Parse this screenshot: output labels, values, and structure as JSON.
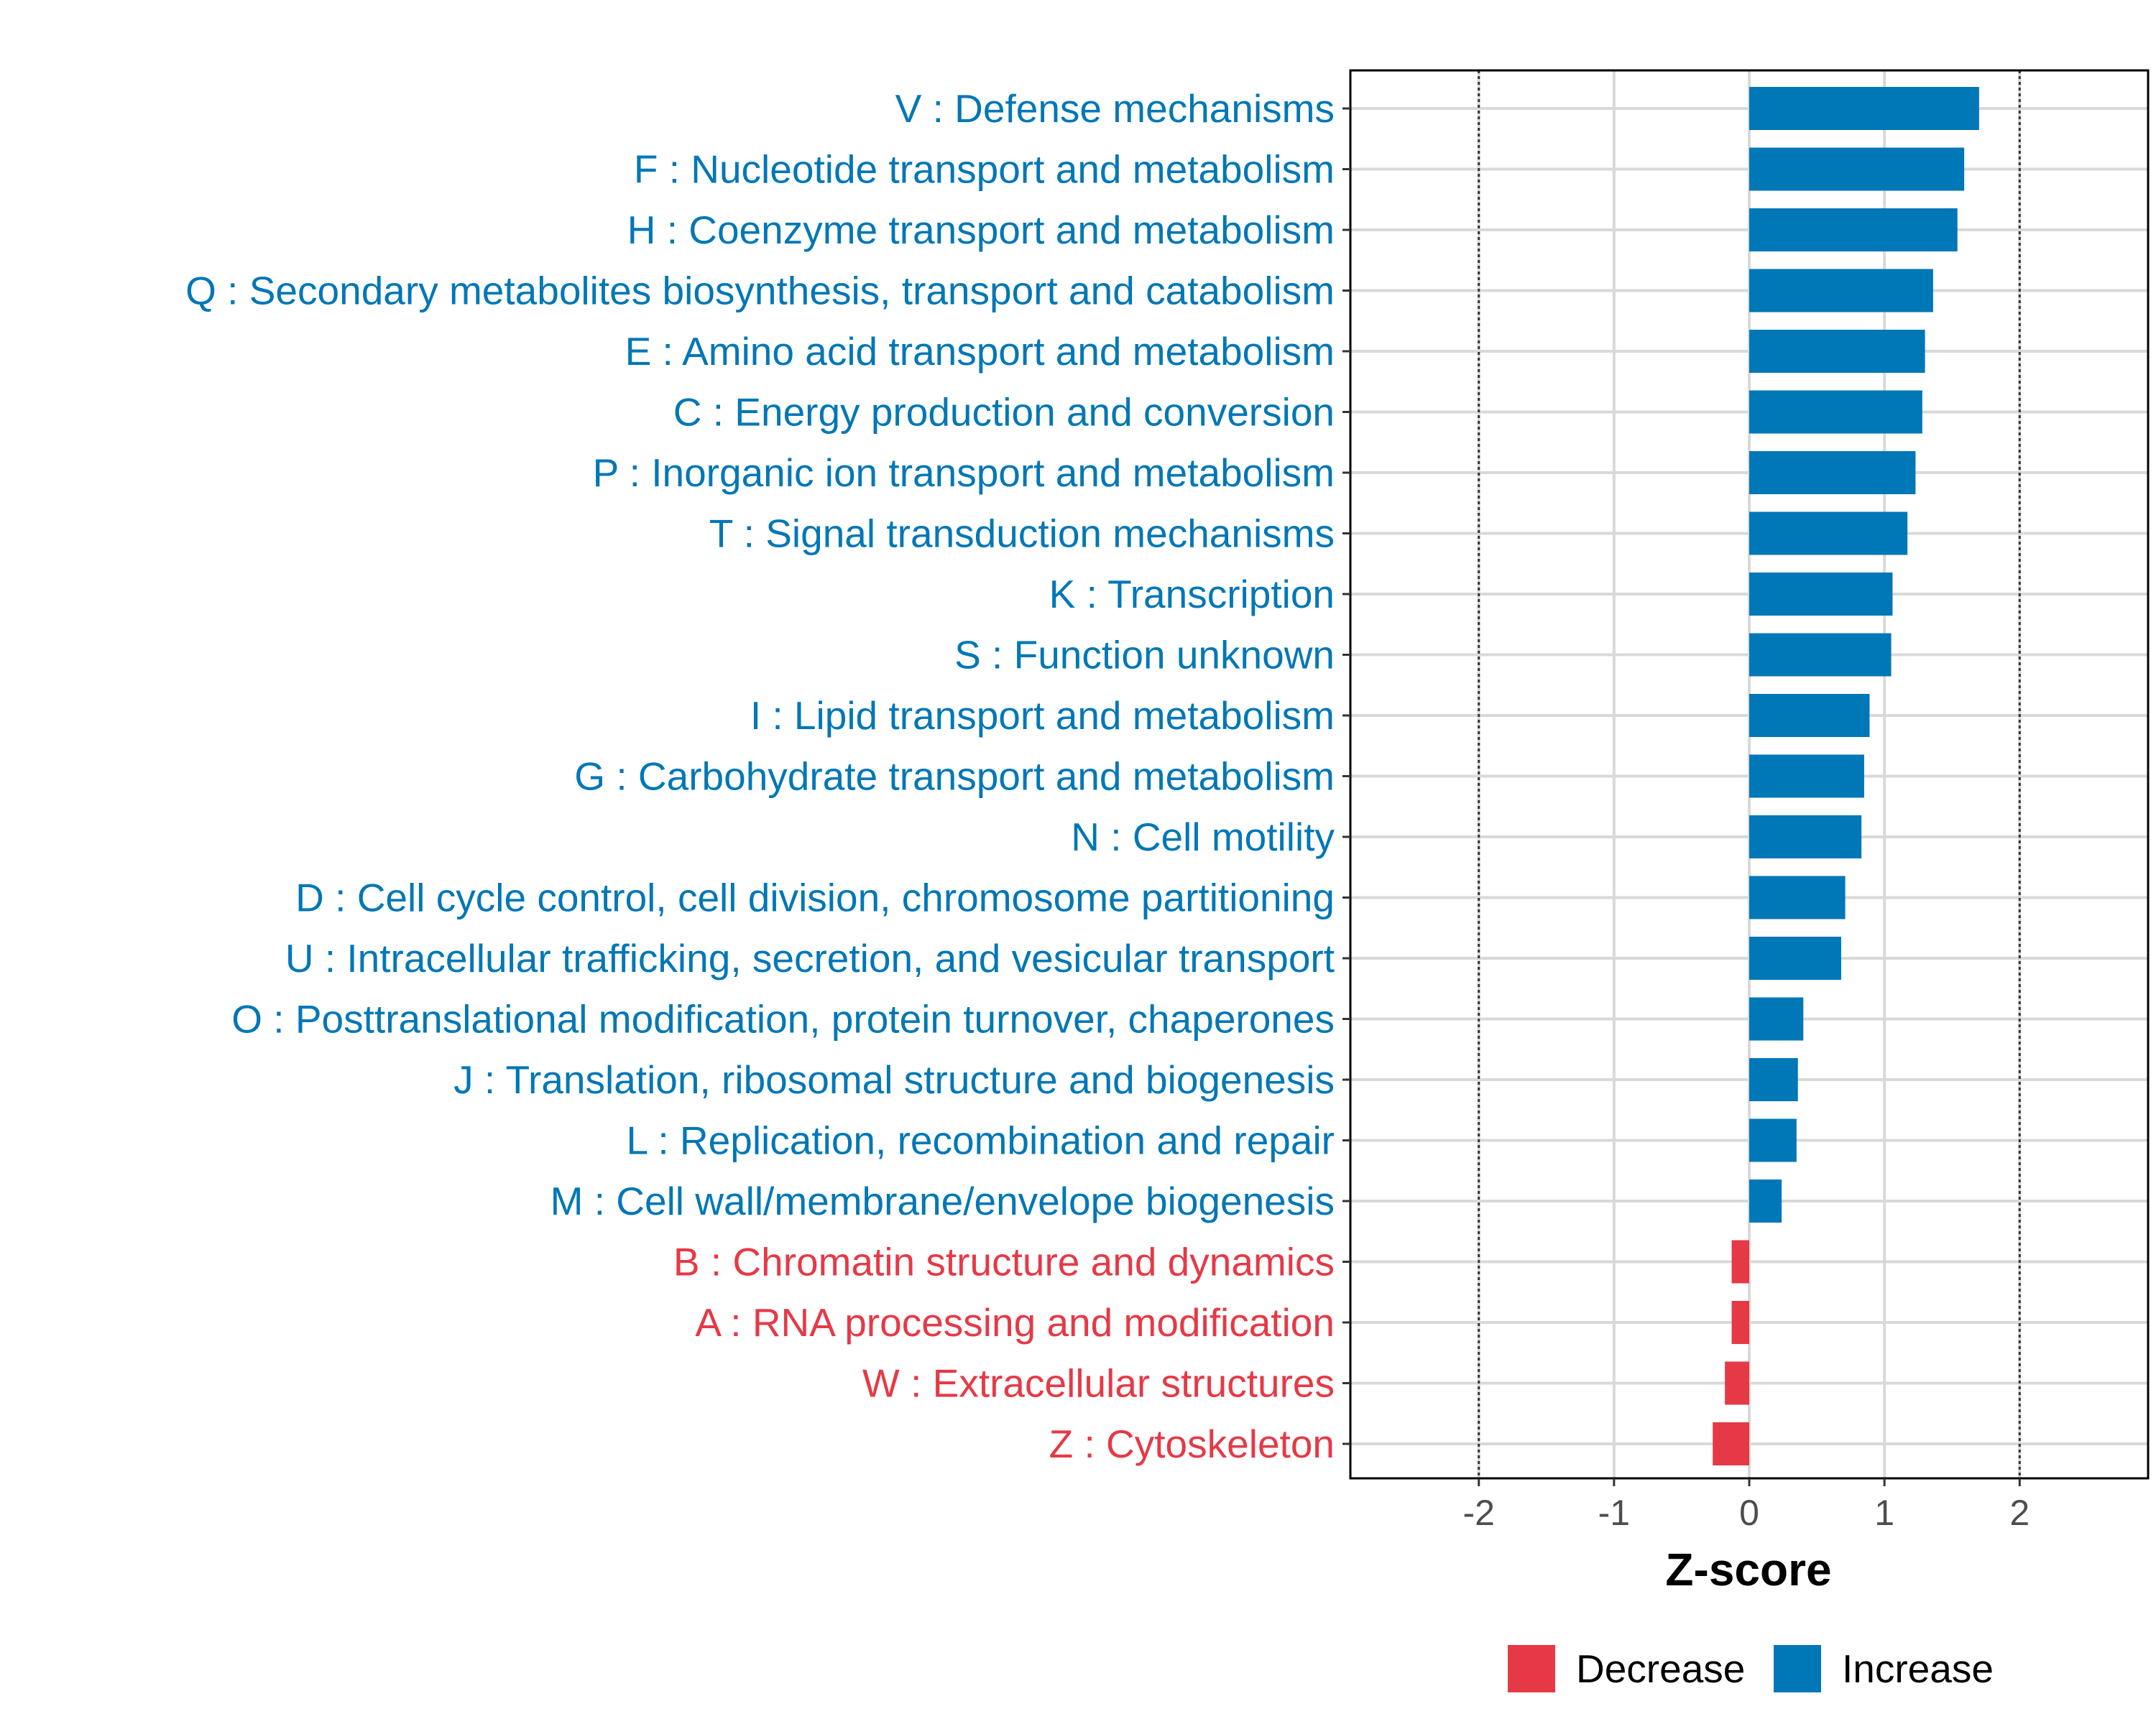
{
  "chart_data": {
    "type": "bar",
    "orientation": "horizontal",
    "categories": [
      "V : Defense mechanisms",
      "F : Nucleotide transport and metabolism",
      "H : Coenzyme transport and metabolism",
      "Q : Secondary metabolites biosynthesis, transport and catabolism",
      "E : Amino acid transport and metabolism",
      "C : Energy production and conversion",
      "P : Inorganic ion transport and metabolism",
      "T : Signal transduction mechanisms",
      "K : Transcription",
      "S : Function unknown",
      "I : Lipid transport and metabolism",
      "G : Carbohydrate transport and metabolism",
      "N : Cell motility",
      "D : Cell cycle control, cell division, chromosome partitioning",
      "U : Intracellular trafficking, secretion, and vesicular transport",
      "O : Posttranslational modification, protein turnover, chaperones",
      "J : Translation, ribosomal structure and biogenesis",
      "L : Replication, recombination and repair",
      "M : Cell wall/membrane/envelope biogenesis",
      "B : Chromatin structure and dynamics",
      "A : RNA processing and modification",
      "W : Extracellular structures",
      "Z : Cytoskeleton"
    ],
    "values": [
      1.7,
      1.59,
      1.54,
      1.36,
      1.3,
      1.28,
      1.23,
      1.17,
      1.06,
      1.05,
      0.89,
      0.85,
      0.83,
      0.71,
      0.68,
      0.4,
      0.36,
      0.35,
      0.24,
      -0.13,
      -0.13,
      -0.18,
      -0.27
    ],
    "groups": [
      "Increase",
      "Increase",
      "Increase",
      "Increase",
      "Increase",
      "Increase",
      "Increase",
      "Increase",
      "Increase",
      "Increase",
      "Increase",
      "Increase",
      "Increase",
      "Increase",
      "Increase",
      "Increase",
      "Increase",
      "Increase",
      "Increase",
      "Decrease",
      "Decrease",
      "Decrease",
      "Decrease"
    ],
    "xlabel": "Z-score",
    "xlim": [
      -2.95,
      2.95
    ],
    "xticks": [
      -2,
      -1,
      0,
      1,
      2
    ],
    "xtick_labels": [
      "-2",
      "-1",
      "0",
      "1",
      "2"
    ],
    "reference_lines": [
      -2,
      2
    ],
    "grid": true,
    "legend": {
      "placement": "bottom",
      "items": [
        {
          "label": "Decrease",
          "color": "#e63946"
        },
        {
          "label": "Increase",
          "color": "#0077b6"
        }
      ]
    },
    "colors": {
      "Increase": "#0077b6",
      "Decrease": "#e63946"
    }
  }
}
